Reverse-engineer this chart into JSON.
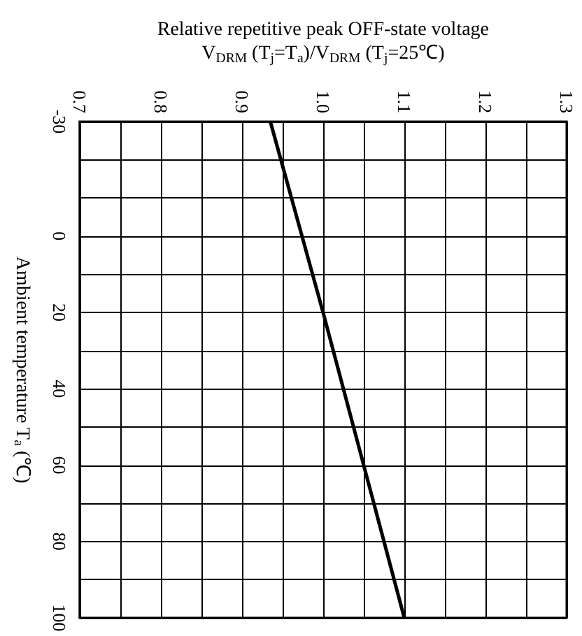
{
  "chart_data": {
    "type": "line",
    "xlabel": "Relative repetitive peak OFF-state voltage\nV$_{DRM}$ (T$_{j}$=T$_{a}$)/V$_{DRM}$ (T$_{j}$=25℃)",
    "ylabel": "Ambient temperature T$_{a}$ (℃)",
    "series": [
      {
        "color": "#000000",
        "x": [
          0.935,
          1.0,
          1.05,
          1.1
        ],
        "values": [
          -30,
          20,
          60,
          100
        ]
      }
    ],
    "xlim": [
      0.7,
      1.3
    ],
    "xticks": [
      0.7,
      {
        "value": 0.75,
        "label": null
      },
      0.8,
      {
        "value": 0.85,
        "label": null
      },
      0.9,
      {
        "value": 0.95,
        "label": null
      },
      {
        "value": 1.0,
        "label": "1.0"
      },
      {
        "value": 1.05,
        "label": null
      },
      1.1,
      {
        "value": 1.15,
        "label": null
      },
      1.2,
      {
        "value": 1.25,
        "label": null
      },
      1.3
    ],
    "ylim": [
      100,
      -30
    ],
    "yticks": [
      -30,
      {
        "value": -20,
        "label": null
      },
      {
        "value": -10,
        "label": null
      },
      0,
      {
        "value": 10,
        "label": null
      },
      20,
      {
        "value": 30,
        "label": null
      },
      40,
      {
        "value": 50,
        "label": null
      },
      60,
      {
        "value": 70,
        "label": null
      },
      80,
      {
        "value": 90,
        "label": null
      },
      100
    ],
    "grid": true,
    "marker": "none",
    "line_style": "solid"
  }
}
